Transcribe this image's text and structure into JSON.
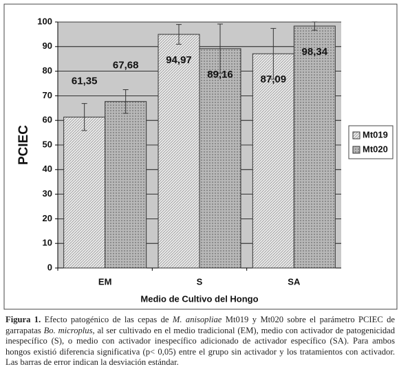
{
  "chart_data": {
    "type": "bar",
    "x_label": "Medio de Cultivo del Hongo",
    "y_label": "PCIEC",
    "categories": [
      "EM",
      "S",
      "SA"
    ],
    "series": [
      {
        "name": "Mt019",
        "color": "#e8e8e8",
        "values": [
          61.35,
          94.97,
          87.09
        ],
        "value_labels": [
          "61,35",
          "94,97",
          "87,09"
        ],
        "errors": [
          5.5,
          4,
          10.3
        ]
      },
      {
        "name": "Mt020",
        "color": "#b8b8b8",
        "values": [
          67.68,
          89.16,
          98.34
        ],
        "value_labels": [
          "67,68",
          "89,16",
          "98,34"
        ],
        "errors": [
          4.8,
          10,
          1.7
        ]
      }
    ],
    "ylim": [
      0,
      100
    ],
    "yticks": [
      0,
      10,
      20,
      30,
      40,
      50,
      60,
      70,
      80,
      90,
      100
    ],
    "grid": true,
    "legend": "right"
  },
  "caption": [
    {
      "text": "Figura 1.",
      "style": "bold"
    },
    {
      "text": " Efecto patogénico de las cepas de ",
      "style": "normal"
    },
    {
      "text": "M. anisopliae",
      "style": "italic"
    },
    {
      "text": " Mt019 y Mt020 sobre el parámetro PCIEC de garrapatas ",
      "style": "normal"
    },
    {
      "text": "Bo. microplus,",
      "style": "italic"
    },
    {
      "text": " al ser cultivado en el medio tradicional (EM), medio con activador de patogenicidad inespecífico (S), o medio con activador inespecífico adicionado de activador específico (SA). Para ambos hongos existió diferencia significativa (p< 0,05) entre el grupo sin activador y los tratamientos con activador. Las barras de error indican la desviación estándar.",
      "style": "normal"
    }
  ]
}
